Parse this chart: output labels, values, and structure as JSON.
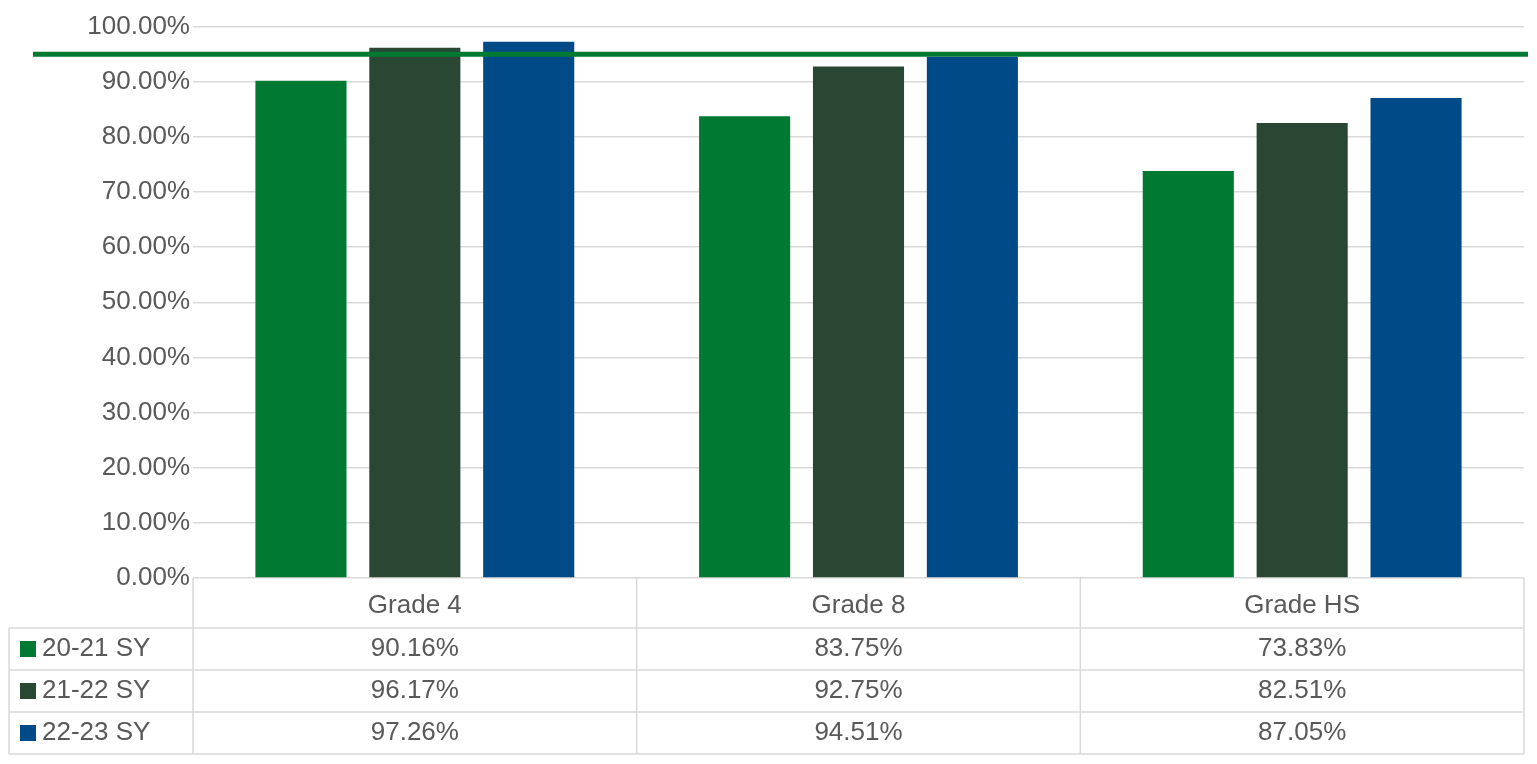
{
  "chart_data": {
    "type": "bar",
    "categories": [
      "Grade 4",
      "Grade 8",
      "Grade HS"
    ],
    "series": [
      {
        "name": "20-21 SY",
        "color": "#007a33",
        "values": [
          90.16,
          83.75,
          73.83
        ],
        "value_labels": [
          "90.16%",
          "83.75%",
          "73.83%"
        ]
      },
      {
        "name": "21-22 SY",
        "color": "#2a4733",
        "values": [
          96.17,
          92.75,
          82.51
        ],
        "value_labels": [
          "96.17%",
          "92.75%",
          "82.51%"
        ]
      },
      {
        "name": "22-23 SY",
        "color": "#004b87",
        "values": [
          97.26,
          94.51,
          87.05
        ],
        "value_labels": [
          "97.26%",
          "94.51%",
          "87.05%"
        ]
      }
    ],
    "ylim": [
      0,
      100
    ],
    "yticks": [
      {
        "value": 0,
        "label": "0.00%"
      },
      {
        "value": 10,
        "label": "10.00%"
      },
      {
        "value": 20,
        "label": "20.00%"
      },
      {
        "value": 30,
        "label": "30.00%"
      },
      {
        "value": 40,
        "label": "40.00%"
      },
      {
        "value": 50,
        "label": "50.00%"
      },
      {
        "value": 60,
        "label": "60.00%"
      },
      {
        "value": 70,
        "label": "70.00%"
      },
      {
        "value": 80,
        "label": "80.00%"
      },
      {
        "value": 90,
        "label": "90.00%"
      },
      {
        "value": 100,
        "label": "100.00%"
      }
    ],
    "ref_lines": [
      {
        "axis": "y",
        "value": 95,
        "color": "#007a33"
      }
    ],
    "grid": "y",
    "legend": "bottom"
  }
}
